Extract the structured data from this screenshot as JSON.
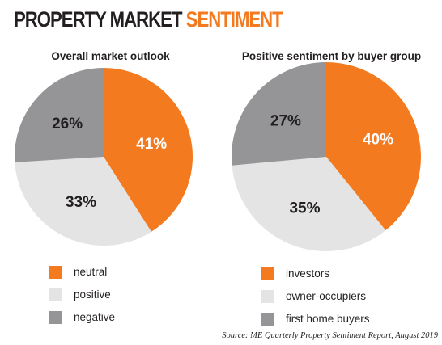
{
  "header": {
    "title_part1": "PROPERTY MARKET",
    "title_part2": "SENTIMENT"
  },
  "colors": {
    "accent": "#f47a20",
    "light_gray": "#e4e4e5",
    "dark_gray": "#959597"
  },
  "chart_data": [
    {
      "type": "pie",
      "title": "Overall market outlook",
      "start_angle_deg": 0,
      "slices": [
        {
          "label": "neutral",
          "value": 41,
          "display": "41%",
          "color": "#f47a20"
        },
        {
          "label": "positive",
          "value": 33,
          "display": "33%",
          "color": "#e4e4e5"
        },
        {
          "label": "negative",
          "value": 26,
          "display": "26%",
          "color": "#959597"
        }
      ],
      "legend_position": "bottom-left"
    },
    {
      "type": "pie",
      "title": "Positive sentiment by buyer group",
      "start_angle_deg": 0,
      "slices": [
        {
          "label": "investors",
          "value": 40,
          "display": "40%",
          "color": "#f47a20"
        },
        {
          "label": "owner-occupiers",
          "value": 35,
          "display": "35%",
          "color": "#e4e4e5"
        },
        {
          "label": "first home buyers",
          "value": 27,
          "display": "27%",
          "color": "#959597"
        }
      ],
      "legend_position": "bottom-left"
    }
  ],
  "footer": {
    "source": "Source: ME Quarterly Property Sentiment Report, August 2019"
  }
}
